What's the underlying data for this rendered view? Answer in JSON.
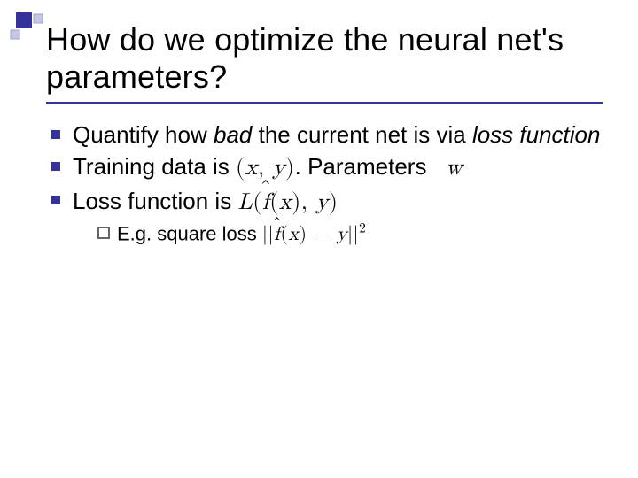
{
  "slide": {
    "title": "How do we optimize the neural net's parameters?",
    "title_fontsize": 36,
    "title_color": "#000000",
    "rule_color": "#333399",
    "bullet_color": "#333399",
    "subbullet_border_color": "#666666",
    "bullet_fontsize": 26,
    "subbullet_fontsize": 22,
    "background_color": "#ffffff",
    "corner": {
      "square_large_fill": "#333399",
      "square_small_fill": "#c6c7e3",
      "square_small_border": "#9fa2d1"
    },
    "bullets": [
      {
        "pre": "Quantify how ",
        "em1": "bad",
        "mid": " the current net is via ",
        "em2": "loss function",
        "post": ""
      },
      {
        "pre": "Training data is ",
        "math1": "(x, y)",
        "mid": ". Parameters ",
        "math2": "w",
        "post": ""
      },
      {
        "pre": "Loss function is  ",
        "math1": "L( f̂(x), y)",
        "mid": "",
        "math2": "",
        "post": ""
      }
    ],
    "sub": {
      "pre": "E.g. square loss   ",
      "math": "|| f̂(x) − y ||²"
    }
  }
}
